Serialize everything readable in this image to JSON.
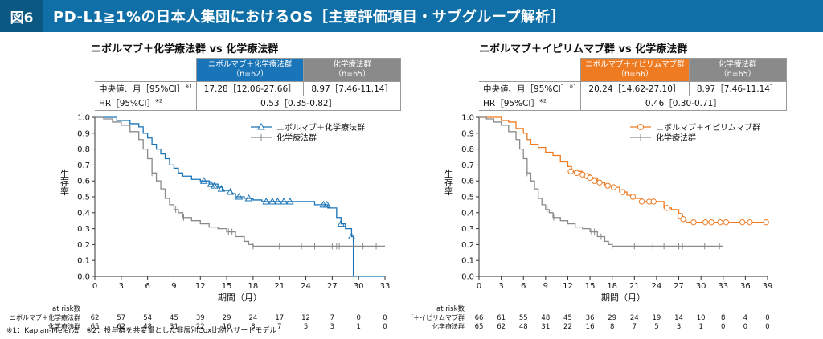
{
  "header": {
    "figure_label": "図6",
    "title": "PD-L1≧1%の日本人集団におけるOS［主要評価項目・サブグループ解析］"
  },
  "footnote": "※1：Kaplan-Meier法　※2：投与群を共変量とした非層別Cox比例ハザードモデル",
  "colors": {
    "header": "#0f6fa6",
    "left_arm": "#1a74b8",
    "right_arm": "#ee7a22",
    "control": "#8a8a8a"
  },
  "panels": [
    {
      "title": "ニボルマブ＋化学療法群 vs 化学療法群",
      "arm_header": "ニボルマブ＋化学療法群",
      "arm_n": "（n=62）",
      "ctrl_header": "化学療法群",
      "ctrl_n": "（n=65）",
      "row1_label": "中央値、月［95%CI］",
      "row1_note": "※1",
      "row1_arm": "17.28［12.06-27.66］",
      "row1_ctrl": "8.97［7.46-11.14］",
      "row2_label": "HR［95%CI］",
      "row2_note": "※2",
      "row2_value": "0.53［0.35-0.82］",
      "risk_title": "at risk数",
      "risk_arm_label": "ニボルマブ＋化学療法群",
      "risk_ctrl_label": "化学療法群"
    },
    {
      "title": "ニボルマブ＋イピリムマブ群 vs 化学療法群",
      "arm_header": "ニボルマブ＋イピリムマブ群",
      "arm_n": "（n=66）",
      "ctrl_header": "化学療法群",
      "ctrl_n": "（n=65）",
      "row1_label": "中央値、月［95%CI］",
      "row1_note": "※1",
      "row1_arm": "20.24［14.62-27.10］",
      "row1_ctrl": "8.97［7.46-11.14］",
      "row2_label": "HR［95%CI］",
      "row2_note": "※2",
      "row2_value": "0.46［0.30-0.71］",
      "risk_title": "at risk数",
      "risk_arm_label": "ニボルマブ＋イピリムマブ群",
      "risk_ctrl_label": "化学療法群"
    }
  ],
  "chart_data": [
    {
      "type": "line",
      "subtype": "kaplan-meier",
      "xlabel": "期間（月）",
      "ylabel": "生存率",
      "xlim": [
        0,
        33
      ],
      "ylim": [
        0,
        1.0
      ],
      "xticks": [
        0,
        3,
        6,
        9,
        12,
        15,
        18,
        21,
        24,
        27,
        30,
        33
      ],
      "yticks": [
        0,
        0.1,
        0.2,
        0.3,
        0.4,
        0.5,
        0.6,
        0.7,
        0.8,
        0.9,
        1.0
      ],
      "legend_position": "top-right",
      "series": [
        {
          "name": "ニボルマブ＋化学療法群",
          "color": "#1a74b8",
          "marker": "triangle",
          "points": [
            [
              0,
              1.0
            ],
            [
              2,
              1.0
            ],
            [
              2.5,
              0.98
            ],
            [
              3.5,
              0.98
            ],
            [
              4,
              0.96
            ],
            [
              5,
              0.94
            ],
            [
              5.5,
              0.9
            ],
            [
              6,
              0.87
            ],
            [
              6.5,
              0.83
            ],
            [
              7,
              0.8
            ],
            [
              7.5,
              0.77
            ],
            [
              8,
              0.74
            ],
            [
              8.5,
              0.7
            ],
            [
              9,
              0.68
            ],
            [
              9.5,
              0.65
            ],
            [
              10,
              0.63
            ],
            [
              11,
              0.61
            ],
            [
              12,
              0.6
            ],
            [
              13,
              0.58
            ],
            [
              14,
              0.56
            ],
            [
              14.5,
              0.54
            ],
            [
              15.5,
              0.52
            ],
            [
              16,
              0.5
            ],
            [
              17,
              0.49
            ],
            [
              18,
              0.48
            ],
            [
              19,
              0.47
            ],
            [
              24,
              0.47
            ],
            [
              25,
              0.45
            ],
            [
              26,
              0.45
            ],
            [
              26.5,
              0.43
            ],
            [
              27,
              0.43
            ],
            [
              27.5,
              0.37
            ],
            [
              28,
              0.33
            ],
            [
              28.5,
              0.3
            ],
            [
              29,
              0.3
            ],
            [
              29.2,
              0.25
            ],
            [
              29.4,
              0.25
            ],
            [
              29.4,
              0.0
            ],
            [
              33,
              0.0
            ]
          ],
          "censored": [
            [
              12.4,
              0.6
            ],
            [
              13.2,
              0.58
            ],
            [
              13.6,
              0.57
            ],
            [
              14.4,
              0.55
            ],
            [
              15.4,
              0.53
            ],
            [
              16.4,
              0.5
            ],
            [
              17.5,
              0.49
            ],
            [
              19.5,
              0.47
            ],
            [
              20.2,
              0.47
            ],
            [
              20.8,
              0.47
            ],
            [
              21.5,
              0.47
            ],
            [
              22.2,
              0.47
            ],
            [
              26.0,
              0.45
            ],
            [
              26.4,
              0.45
            ],
            [
              28.0,
              0.33
            ],
            [
              29.2,
              0.25
            ]
          ],
          "at_risk": [
            62,
            57,
            54,
            45,
            39,
            29,
            24,
            17,
            12,
            7,
            0,
            0
          ]
        },
        {
          "name": "化学療法群",
          "color": "#8a8a8a",
          "marker": "plus",
          "points": [
            [
              0,
              1.0
            ],
            [
              1,
              0.99
            ],
            [
              2,
              0.97
            ],
            [
              3,
              0.95
            ],
            [
              4,
              0.91
            ],
            [
              5,
              0.86
            ],
            [
              5.5,
              0.8
            ],
            [
              6,
              0.74
            ],
            [
              6.5,
              0.65
            ],
            [
              7,
              0.6
            ],
            [
              7.5,
              0.55
            ],
            [
              8,
              0.49
            ],
            [
              8.5,
              0.45
            ],
            [
              9,
              0.42
            ],
            [
              9.5,
              0.4
            ],
            [
              10,
              0.37
            ],
            [
              11,
              0.35
            ],
            [
              12,
              0.33
            ],
            [
              13,
              0.31
            ],
            [
              14,
              0.3
            ],
            [
              15,
              0.28
            ],
            [
              16,
              0.25
            ],
            [
              17,
              0.22
            ],
            [
              17.5,
              0.2
            ],
            [
              18,
              0.19
            ],
            [
              33,
              0.19
            ]
          ],
          "censored": [
            [
              6.5,
              0.65
            ],
            [
              9.2,
              0.42
            ],
            [
              10.1,
              0.37
            ],
            [
              15.2,
              0.28
            ],
            [
              15.6,
              0.28
            ],
            [
              16.5,
              0.25
            ],
            [
              18.0,
              0.19
            ],
            [
              21.0,
              0.19
            ],
            [
              23.5,
              0.19
            ],
            [
              25.0,
              0.19
            ],
            [
              27.0,
              0.19
            ],
            [
              27.5,
              0.19
            ],
            [
              27.8,
              0.19
            ],
            [
              30.5,
              0.19
            ],
            [
              32.0,
              0.19
            ]
          ],
          "at_risk": [
            65,
            62,
            48,
            31,
            22,
            16,
            8,
            7,
            5,
            3,
            1,
            0
          ]
        }
      ]
    },
    {
      "type": "line",
      "subtype": "kaplan-meier",
      "xlabel": "期間（月）",
      "ylabel": "生存率",
      "xlim": [
        0,
        39
      ],
      "ylim": [
        0,
        1.0
      ],
      "xticks": [
        0,
        3,
        6,
        9,
        12,
        15,
        18,
        21,
        24,
        27,
        30,
        33,
        36,
        39
      ],
      "yticks": [
        0,
        0.1,
        0.2,
        0.3,
        0.4,
        0.5,
        0.6,
        0.7,
        0.8,
        0.9,
        1.0
      ],
      "legend_position": "top-right",
      "series": [
        {
          "name": "ニボルマブ＋イピリムマブ群",
          "color": "#ee7a22",
          "marker": "circle",
          "points": [
            [
              0,
              1.0
            ],
            [
              2,
              1.0
            ],
            [
              3,
              0.98
            ],
            [
              4,
              0.97
            ],
            [
              5,
              0.93
            ],
            [
              6,
              0.9
            ],
            [
              6.5,
              0.86
            ],
            [
              7,
              0.83
            ],
            [
              8,
              0.81
            ],
            [
              9,
              0.78
            ],
            [
              10,
              0.76
            ],
            [
              11,
              0.72
            ],
            [
              12,
              0.69
            ],
            [
              12.5,
              0.66
            ],
            [
              14,
              0.64
            ],
            [
              15,
              0.62
            ],
            [
              16,
              0.59
            ],
            [
              17,
              0.57
            ],
            [
              18,
              0.56
            ],
            [
              19,
              0.53
            ],
            [
              20,
              0.51
            ],
            [
              21,
              0.49
            ],
            [
              22,
              0.47
            ],
            [
              24,
              0.47
            ],
            [
              25,
              0.43
            ],
            [
              26,
              0.42
            ],
            [
              27,
              0.38
            ],
            [
              27.5,
              0.36
            ],
            [
              28,
              0.34
            ],
            [
              39,
              0.34
            ]
          ],
          "censored": [
            [
              12.4,
              0.66
            ],
            [
              13.2,
              0.65
            ],
            [
              14.0,
              0.64
            ],
            [
              14.6,
              0.63
            ],
            [
              15.0,
              0.62
            ],
            [
              15.6,
              0.6
            ],
            [
              16.3,
              0.59
            ],
            [
              17.4,
              0.57
            ],
            [
              18.2,
              0.56
            ],
            [
              19.4,
              0.53
            ],
            [
              20.8,
              0.5
            ],
            [
              22.0,
              0.47
            ],
            [
              23.0,
              0.47
            ],
            [
              23.6,
              0.47
            ],
            [
              25.4,
              0.43
            ],
            [
              27.2,
              0.38
            ],
            [
              27.6,
              0.36
            ],
            [
              29.0,
              0.34
            ],
            [
              30.6,
              0.34
            ],
            [
              31.4,
              0.34
            ],
            [
              32.6,
              0.34
            ],
            [
              33.4,
              0.34
            ],
            [
              35.6,
              0.34
            ],
            [
              36.6,
              0.34
            ],
            [
              38.8,
              0.34
            ]
          ],
          "at_risk": [
            66,
            61,
            55,
            48,
            45,
            36,
            29,
            24,
            19,
            14,
            10,
            8,
            4,
            0
          ]
        },
        {
          "name": "化学療法群",
          "color": "#8a8a8a",
          "marker": "plus",
          "points": [
            [
              0,
              1.0
            ],
            [
              1,
              0.99
            ],
            [
              2,
              0.97
            ],
            [
              3,
              0.95
            ],
            [
              4,
              0.91
            ],
            [
              5,
              0.86
            ],
            [
              5.5,
              0.8
            ],
            [
              6,
              0.74
            ],
            [
              6.5,
              0.65
            ],
            [
              7,
              0.6
            ],
            [
              7.5,
              0.55
            ],
            [
              8,
              0.49
            ],
            [
              8.5,
              0.45
            ],
            [
              9,
              0.42
            ],
            [
              9.5,
              0.4
            ],
            [
              10,
              0.37
            ],
            [
              11,
              0.35
            ],
            [
              12,
              0.33
            ],
            [
              13,
              0.31
            ],
            [
              14,
              0.3
            ],
            [
              15,
              0.28
            ],
            [
              16,
              0.25
            ],
            [
              17,
              0.22
            ],
            [
              17.5,
              0.2
            ],
            [
              18,
              0.19
            ],
            [
              33,
              0.19
            ]
          ],
          "censored": [
            [
              6.5,
              0.65
            ],
            [
              9.2,
              0.42
            ],
            [
              10.1,
              0.37
            ],
            [
              15.2,
              0.28
            ],
            [
              15.6,
              0.28
            ],
            [
              16.5,
              0.25
            ],
            [
              18.0,
              0.19
            ],
            [
              21.0,
              0.19
            ],
            [
              23.5,
              0.19
            ],
            [
              25.0,
              0.19
            ],
            [
              27.0,
              0.19
            ],
            [
              27.5,
              0.19
            ],
            [
              30.5,
              0.19
            ],
            [
              32.5,
              0.19
            ]
          ],
          "at_risk": [
            65,
            62,
            48,
            31,
            22,
            16,
            8,
            7,
            5,
            3,
            1,
            0,
            0,
            0
          ]
        }
      ]
    }
  ]
}
